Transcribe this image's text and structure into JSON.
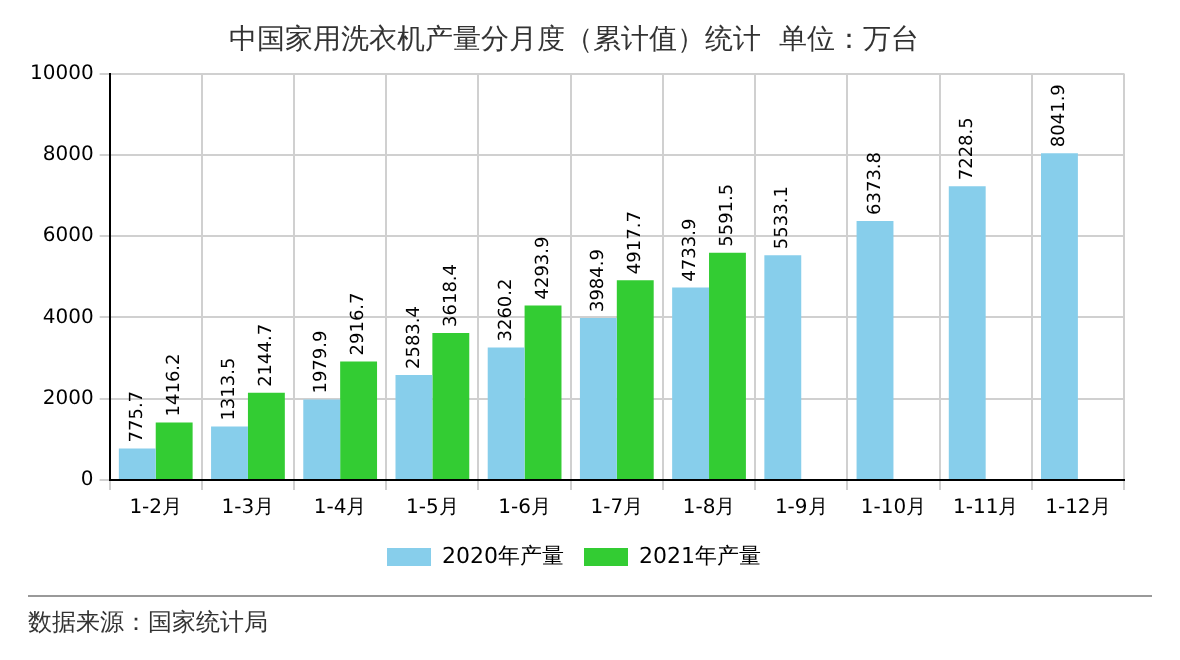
{
  "chart_data": {
    "type": "bar",
    "title": "中国家用洗衣机产量分月度（累计值）统计  单位：万台",
    "categories": [
      "1-2月",
      "1-3月",
      "1-4月",
      "1-5月",
      "1-6月",
      "1-7月",
      "1-8月",
      "1-9月",
      "1-10月",
      "1-11月",
      "1-12月"
    ],
    "series": [
      {
        "name": "2020年产量",
        "color": "#87ceeb",
        "values": [
          775.7,
          1313.5,
          1979.9,
          2583.4,
          3260.2,
          3984.9,
          4733.9,
          5533.1,
          6373.8,
          7228.5,
          8041.9
        ]
      },
      {
        "name": "2021年产量",
        "color": "#33cc33",
        "values": [
          1416.2,
          2144.7,
          2916.7,
          3618.4,
          4293.9,
          4917.7,
          5591.5,
          null,
          null,
          null,
          null
        ]
      }
    ],
    "ylim": [
      0,
      10000
    ],
    "yticks": [
      0,
      2000,
      4000,
      6000,
      8000,
      10000
    ],
    "grid": true,
    "legend": "bottom",
    "data_labels": true,
    "annotations": [
      "数据来源：国家统计局"
    ]
  }
}
